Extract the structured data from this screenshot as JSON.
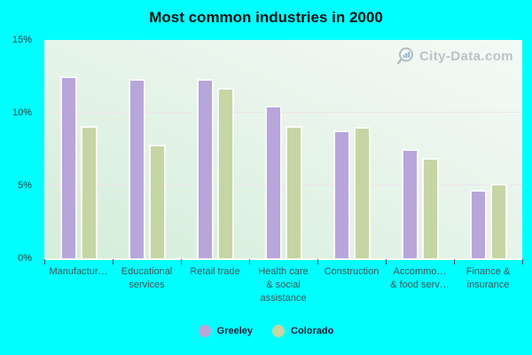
{
  "title": "Most common industries in 2000",
  "watermark": {
    "text": "City-Data.com"
  },
  "colors": {
    "background": "#00ffff",
    "plot_gradient_top": "#f4faf5",
    "plot_gradient_bottom": "#d3eed9",
    "gridline": "#efe2ed",
    "greeley_bar": "#b8a5da",
    "colorado_bar": "#c5d5a3",
    "bar_border": "rgba(255,255,255,0.9)",
    "axis_text": "#3f5456",
    "tick_mark": "#3a5a64",
    "watermark_text": "#b2bdc3"
  },
  "chart_data": {
    "type": "bar",
    "title": "Most common industries in 2000",
    "categories": [
      "Manufactur…",
      "Educational\nservices",
      "Retail trade",
      "Health care\n& social\nassistance",
      "Construction",
      "Accommo…\n& food serv…",
      "Finance &\ninsurance"
    ],
    "series": [
      {
        "name": "Greeley",
        "color": "#b8a5da",
        "values": [
          12.5,
          12.3,
          12.3,
          10.5,
          8.8,
          7.5,
          4.7
        ]
      },
      {
        "name": "Colorado",
        "color": "#c5d5a3",
        "values": [
          9.1,
          7.8,
          11.7,
          9.1,
          9.0,
          6.9,
          5.1
        ]
      }
    ],
    "xlabel": "",
    "ylabel": "",
    "ylim": [
      0,
      15
    ],
    "yticks": [
      "0%",
      "5%",
      "10%",
      "15%"
    ],
    "gridlines": [
      5,
      10
    ],
    "grid": "horizontal",
    "legend_position": "bottom"
  }
}
